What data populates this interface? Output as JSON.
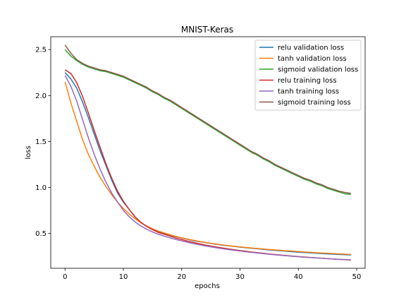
{
  "chart_data": {
    "type": "line",
    "title": "MNIST-Keras",
    "xlabel": "epochs",
    "ylabel": "loss",
    "xlim": [
      -2.45,
      51.45
    ],
    "ylim": [
      0.12,
      2.64
    ],
    "xticks": [
      0,
      10,
      20,
      30,
      40,
      50
    ],
    "yticks": [
      0.5,
      1.0,
      1.5,
      2.0,
      2.5
    ],
    "ytick_labels": [
      "0.5",
      "1.0",
      "1.5",
      "2.0",
      "2.5"
    ],
    "legend_position": "upper right",
    "grid": false,
    "x": [
      0,
      1,
      2,
      3,
      4,
      5,
      6,
      7,
      8,
      9,
      10,
      11,
      12,
      13,
      14,
      15,
      16,
      17,
      18,
      19,
      20,
      21,
      22,
      23,
      24,
      25,
      26,
      27,
      28,
      29,
      30,
      31,
      32,
      33,
      34,
      35,
      36,
      37,
      38,
      39,
      40,
      41,
      42,
      43,
      44,
      45,
      46,
      47,
      48,
      49
    ],
    "series": [
      {
        "name": "relu validation loss",
        "color": "#1f77b4",
        "values": [
          2.25,
          2.18,
          2.08,
          1.93,
          1.76,
          1.58,
          1.4,
          1.24,
          1.08,
          0.94,
          0.84,
          0.76,
          0.68,
          0.62,
          0.575,
          0.545,
          0.52,
          0.5,
          0.48,
          0.465,
          0.45,
          0.435,
          0.42,
          0.41,
          0.4,
          0.39,
          0.38,
          0.372,
          0.365,
          0.358,
          0.35,
          0.344,
          0.338,
          0.332,
          0.326,
          0.32,
          0.315,
          0.31,
          0.305,
          0.3,
          0.296,
          0.292,
          0.288,
          0.284,
          0.28,
          0.277,
          0.274,
          0.271,
          0.268,
          0.265
        ]
      },
      {
        "name": "tanh validation loss",
        "color": "#ff7f0e",
        "values": [
          2.15,
          1.92,
          1.72,
          1.52,
          1.36,
          1.23,
          1.11,
          1.01,
          0.92,
          0.84,
          0.77,
          0.71,
          0.66,
          0.615,
          0.58,
          0.55,
          0.525,
          0.505,
          0.485,
          0.468,
          0.452,
          0.438,
          0.425,
          0.413,
          0.402,
          0.392,
          0.383,
          0.375,
          0.367,
          0.36,
          0.353,
          0.347,
          0.341,
          0.335,
          0.33,
          0.325,
          0.32,
          0.315,
          0.31,
          0.306,
          0.302,
          0.298,
          0.294,
          0.29,
          0.286,
          0.283,
          0.28,
          0.277,
          0.274,
          0.271
        ]
      },
      {
        "name": "sigmoid validation loss",
        "color": "#2ca02c",
        "values": [
          2.5,
          2.43,
          2.38,
          2.34,
          2.31,
          2.29,
          2.27,
          2.26,
          2.24,
          2.22,
          2.2,
          2.17,
          2.14,
          2.11,
          2.08,
          2.04,
          2.01,
          1.97,
          1.94,
          1.9,
          1.86,
          1.82,
          1.78,
          1.74,
          1.7,
          1.66,
          1.62,
          1.58,
          1.54,
          1.5,
          1.46,
          1.42,
          1.38,
          1.35,
          1.31,
          1.28,
          1.24,
          1.21,
          1.18,
          1.15,
          1.12,
          1.09,
          1.07,
          1.04,
          1.02,
          0.99,
          0.97,
          0.95,
          0.93,
          0.925
        ]
      },
      {
        "name": "relu training loss",
        "color": "#d62728",
        "values": [
          2.28,
          2.24,
          2.14,
          1.99,
          1.81,
          1.62,
          1.44,
          1.26,
          1.1,
          0.96,
          0.85,
          0.76,
          0.68,
          0.62,
          0.575,
          0.54,
          0.51,
          0.49,
          0.47,
          0.45,
          0.433,
          0.416,
          0.401,
          0.387,
          0.374,
          0.362,
          0.351,
          0.341,
          0.331,
          0.322,
          0.313,
          0.305,
          0.297,
          0.29,
          0.283,
          0.276,
          0.27,
          0.264,
          0.258,
          0.253,
          0.248,
          0.243,
          0.238,
          0.234,
          0.229,
          0.225,
          0.221,
          0.217,
          0.213,
          0.21
        ]
      },
      {
        "name": "tanh training loss",
        "color": "#9467bd",
        "values": [
          2.22,
          2.1,
          1.94,
          1.74,
          1.54,
          1.36,
          1.2,
          1.06,
          0.94,
          0.84,
          0.75,
          0.68,
          0.625,
          0.58,
          0.545,
          0.515,
          0.49,
          0.47,
          0.451,
          0.434,
          0.418,
          0.403,
          0.389,
          0.376,
          0.364,
          0.353,
          0.343,
          0.333,
          0.324,
          0.316,
          0.308,
          0.3,
          0.293,
          0.286,
          0.279,
          0.273,
          0.267,
          0.261,
          0.256,
          0.251,
          0.246,
          0.241,
          0.237,
          0.233,
          0.229,
          0.225,
          0.221,
          0.218,
          0.215,
          0.212
        ]
      },
      {
        "name": "sigmoid training loss",
        "color": "#8c564b",
        "values": [
          2.55,
          2.46,
          2.39,
          2.35,
          2.32,
          2.3,
          2.28,
          2.27,
          2.25,
          2.23,
          2.21,
          2.18,
          2.15,
          2.12,
          2.09,
          2.05,
          2.02,
          1.98,
          1.95,
          1.91,
          1.87,
          1.83,
          1.79,
          1.75,
          1.71,
          1.67,
          1.63,
          1.59,
          1.55,
          1.51,
          1.47,
          1.43,
          1.39,
          1.36,
          1.32,
          1.29,
          1.25,
          1.22,
          1.19,
          1.16,
          1.13,
          1.1,
          1.08,
          1.05,
          1.03,
          1.0,
          0.98,
          0.96,
          0.945,
          0.935
        ]
      }
    ]
  }
}
